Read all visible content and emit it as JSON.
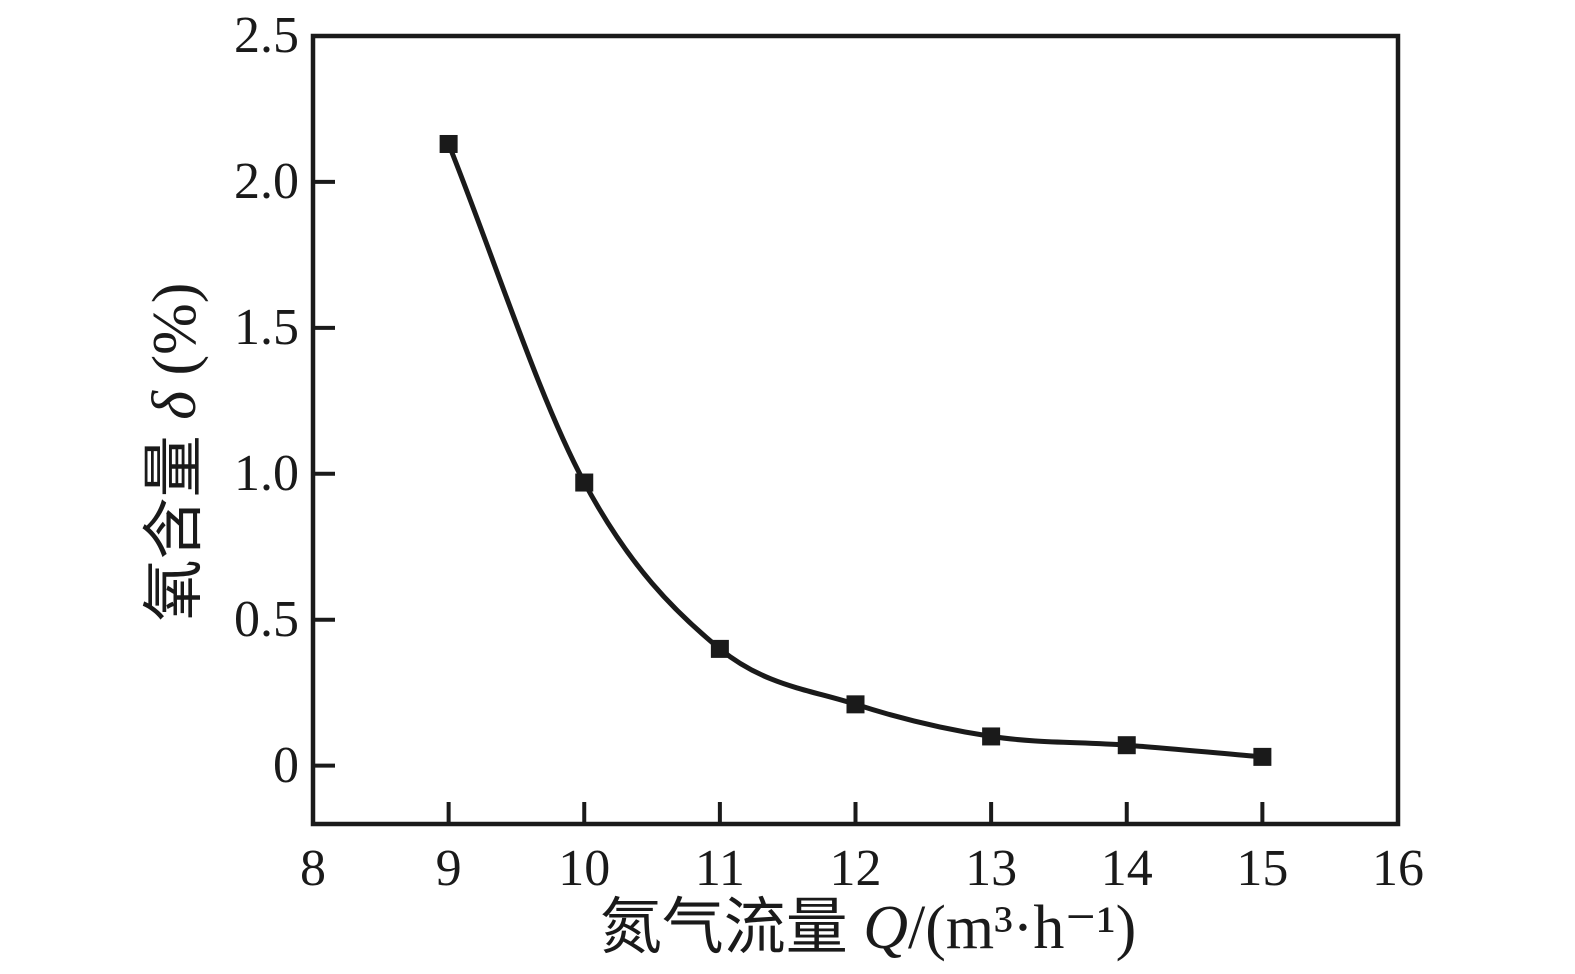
{
  "figure": {
    "background": "#ffffff",
    "ink_color": "#1a1a1a"
  },
  "chart_data": {
    "type": "line",
    "title": "",
    "xlabel": "氮气流量 Q/(m³·h⁻¹)",
    "ylabel": "氧含量 δ (%)",
    "xlabel_parts": [
      {
        "text": "氮气流量 ",
        "style": "normal"
      },
      {
        "text": "Q",
        "style": "italic"
      },
      {
        "text": "/(m³·h⁻¹)",
        "style": "normal"
      }
    ],
    "ylabel_parts": [
      {
        "text": "氧含量 ",
        "style": "normal"
      },
      {
        "text": "δ",
        "style": "italic"
      },
      {
        "text": " (%)",
        "style": "normal"
      }
    ],
    "series": [
      {
        "name": "氧含量 δ",
        "x": [
          9,
          10,
          11,
          12,
          13,
          14,
          15
        ],
        "y": [
          2.13,
          0.97,
          0.4,
          0.21,
          0.1,
          0.07,
          0.03
        ]
      }
    ],
    "xlim": [
      8,
      16
    ],
    "ylim": [
      -0.2,
      2.5
    ],
    "xticks": [
      8,
      9,
      10,
      11,
      12,
      13,
      14,
      15,
      16
    ],
    "xtick_labels": [
      "8",
      "9",
      "10",
      "11",
      "12",
      "13",
      "14",
      "15",
      "16"
    ],
    "yticks": [
      0,
      0.5,
      1.0,
      1.5,
      2.0,
      2.5
    ],
    "ytick_labels": [
      "0",
      "0.5",
      "1.0",
      "1.5",
      "2.0",
      "2.5"
    ],
    "grid": false,
    "legend": null,
    "curve": "smooth",
    "marker": "filled-square",
    "line_color": "#1a1a1a"
  }
}
